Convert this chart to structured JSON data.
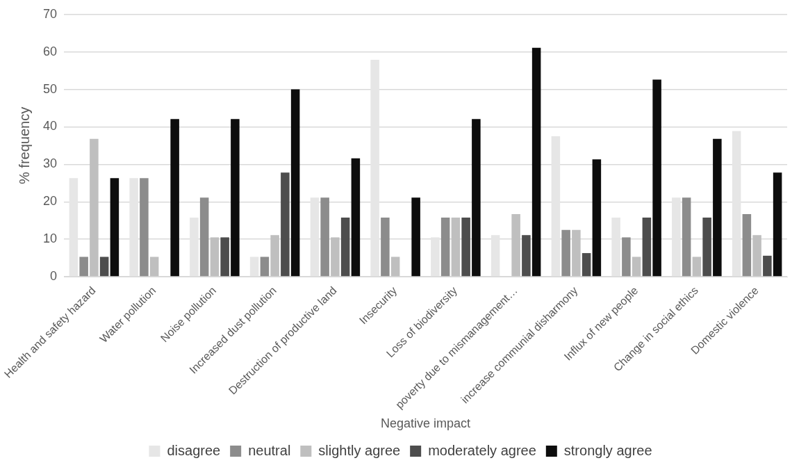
{
  "chart_data": {
    "type": "bar",
    "xlabel": "Negative impact",
    "ylabel": "% frequency",
    "categories": [
      "Health and safety hazard",
      "Water pollution",
      "Noise pollution",
      "Increased dust pollution",
      "Destruction of productive land",
      "Insecurity",
      "Loss of biodiversity",
      "poverty due to mismanagement…",
      "increase communial disharmony",
      "Influx of new people",
      "Change in social ethics",
      "Domestic violence"
    ],
    "series": [
      {
        "name": "disagree",
        "color": "#e6e6e6",
        "values": [
          26.3,
          26.3,
          15.8,
          5.3,
          21.1,
          57.9,
          10.5,
          11.1,
          37.5,
          15.8,
          21.1,
          38.9
        ]
      },
      {
        "name": "neutral",
        "color": "#8c8c8c",
        "values": [
          5.3,
          26.3,
          21.1,
          5.3,
          21.1,
          15.8,
          15.8,
          0,
          12.5,
          10.5,
          21.1,
          16.7
        ]
      },
      {
        "name": "slightly agree",
        "color": "#bfbfbf",
        "values": [
          36.8,
          5.3,
          10.5,
          11.1,
          10.5,
          5.3,
          15.8,
          16.7,
          12.5,
          5.3,
          5.3,
          11.1
        ]
      },
      {
        "name": "moderately agree",
        "color": "#4d4d4d",
        "values": [
          5.3,
          0,
          10.5,
          27.8,
          15.8,
          0,
          15.8,
          11.1,
          6.3,
          15.8,
          15.8,
          5.6
        ]
      },
      {
        "name": "strongly agree",
        "color": "#0d0d0d",
        "values": [
          26.3,
          42.1,
          42.1,
          50,
          31.6,
          21.1,
          42.1,
          61.1,
          31.3,
          52.6,
          36.8,
          27.8
        ]
      }
    ],
    "ylim": [
      0,
      70
    ],
    "yticks": [
      0,
      10,
      20,
      30,
      40,
      50,
      60,
      70
    ],
    "grid": "y",
    "legend": "bottom"
  }
}
